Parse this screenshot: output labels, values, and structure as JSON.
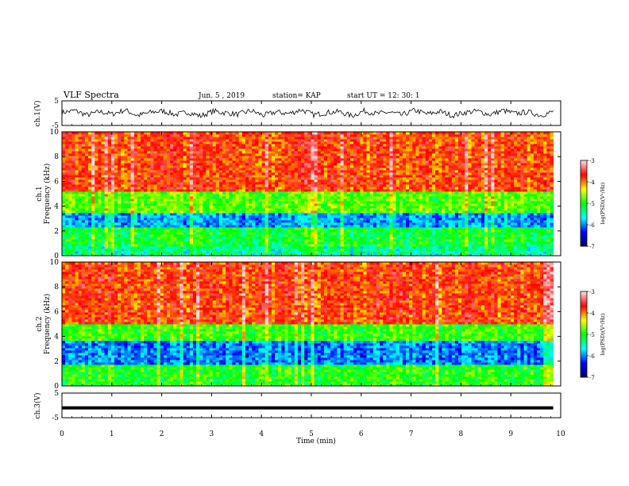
{
  "header": {
    "title": "VLF Spectra",
    "date": "Jun. 5 , 2019",
    "station": "station= KAP",
    "start": "start UT = 12: 30: 1"
  },
  "chart_data": [
    {
      "id": "ch1v",
      "type": "line",
      "ylabel": "ch.1(V)",
      "ylim": [
        -5,
        5
      ],
      "yticks": [
        "5",
        "-5"
      ],
      "x_range_min": [
        0,
        9.85
      ],
      "series": [
        {
          "values": [
            0.2,
            1.1,
            -0.8,
            0.6,
            -0.4,
            1.3,
            -1.0,
            0.3,
            0.9,
            -0.6,
            0.4,
            -1.2,
            0.8,
            0.1,
            -0.5,
            1.0,
            -0.9,
            0.5,
            -0.2,
            1.4,
            -0.7,
            0.2,
            0.6,
            -1.1,
            0.9,
            -0.3,
            0.4,
            -0.8,
            1.2,
            -0.4,
            0.7,
            -1.0,
            0.3,
            0.8,
            -0.6,
            1.1,
            -0.2,
            0.5,
            -0.9,
            0.6
          ]
        }
      ]
    },
    {
      "id": "ch1",
      "type": "heatmap",
      "ylabel": "ch.1\nFrequency (kHz)",
      "ylim": [
        0,
        10
      ],
      "yticks": [
        "0",
        "2",
        "4",
        "6",
        "8",
        "10"
      ],
      "x_range_min": [
        0,
        9.85
      ],
      "colorbar": {
        "label": "log(PSD)(V²/Hz)",
        "range": [
          -7,
          -3
        ],
        "ticks": [
          "-3",
          "-4",
          "-5",
          "-6",
          "-7"
        ]
      },
      "bands_khz_to_log_psd": [
        {
          "from": 0,
          "to": 0.8,
          "value": -5.4
        },
        {
          "from": 0.8,
          "to": 2.4,
          "value": -5.1
        },
        {
          "from": 2.4,
          "to": 3.4,
          "value": -5.9
        },
        {
          "from": 3.4,
          "to": 5.2,
          "value": -4.8
        },
        {
          "from": 5.2,
          "to": 10,
          "value": -3.8
        }
      ]
    },
    {
      "id": "ch2",
      "type": "heatmap",
      "ylabel": "ch.2\nFrequency (kHz)",
      "ylim": [
        0,
        10
      ],
      "yticks": [
        "0",
        "2",
        "4",
        "6",
        "8",
        "10"
      ],
      "x_range_min": [
        0,
        9.85
      ],
      "colorbar": {
        "label": "log(PSD)(V²/Hz)",
        "range": [
          -7,
          -3
        ],
        "ticks": [
          "-3",
          "-4",
          "-5",
          "-6",
          "-7"
        ]
      },
      "bands_khz_to_log_psd": [
        {
          "from": 0,
          "to": 1.8,
          "value": -5.0
        },
        {
          "from": 1.8,
          "to": 3.6,
          "value": -6.0
        },
        {
          "from": 3.6,
          "to": 5.0,
          "value": -4.9
        },
        {
          "from": 5.0,
          "to": 10,
          "value": -3.8
        }
      ]
    },
    {
      "id": "ch3v",
      "type": "line",
      "ylabel": "ch.3(V)",
      "ylim": [
        -5,
        5
      ],
      "yticks": [
        "5",
        "-5"
      ],
      "x_range_min": [
        0,
        9.85
      ],
      "series": [
        {
          "values": [
            -1,
            -1
          ]
        }
      ]
    }
  ],
  "xaxis": {
    "label": "Time (min)",
    "range": [
      0,
      10
    ],
    "ticks": [
      "0",
      "1",
      "2",
      "3",
      "4",
      "5",
      "6",
      "7",
      "8",
      "9",
      "10"
    ]
  },
  "colors": {
    "colormap": [
      "#000064",
      "#0000ff",
      "#00ffff",
      "#00ff00",
      "#ffff00",
      "#ff0000",
      "#ffe0e0"
    ]
  }
}
